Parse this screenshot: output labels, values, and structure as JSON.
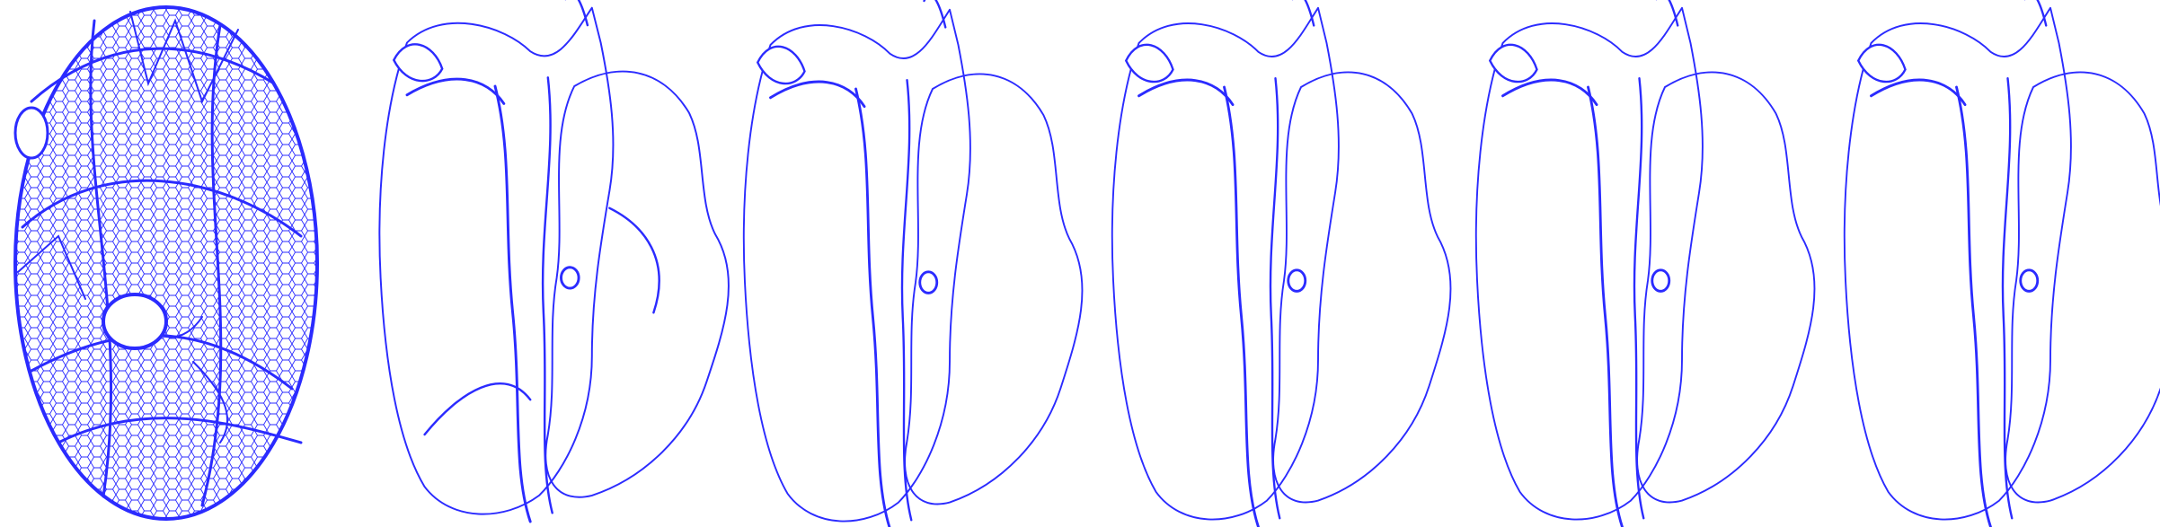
{
  "figure": {
    "background_color": "#ffffff",
    "mesh_color": "#2b2bff",
    "mesh_fill_opacity": 0.1,
    "panel_count": 6,
    "panels": [
      {
        "shape": "ellipsoid-initial",
        "index": 1
      },
      {
        "shape": "surface-stage-2",
        "index": 2
      },
      {
        "shape": "surface-stage-3",
        "index": 3
      },
      {
        "shape": "surface-stage-4",
        "index": 4
      },
      {
        "shape": "surface-stage-5",
        "index": 5
      },
      {
        "shape": "surface-stage-6",
        "index": 6
      }
    ]
  }
}
